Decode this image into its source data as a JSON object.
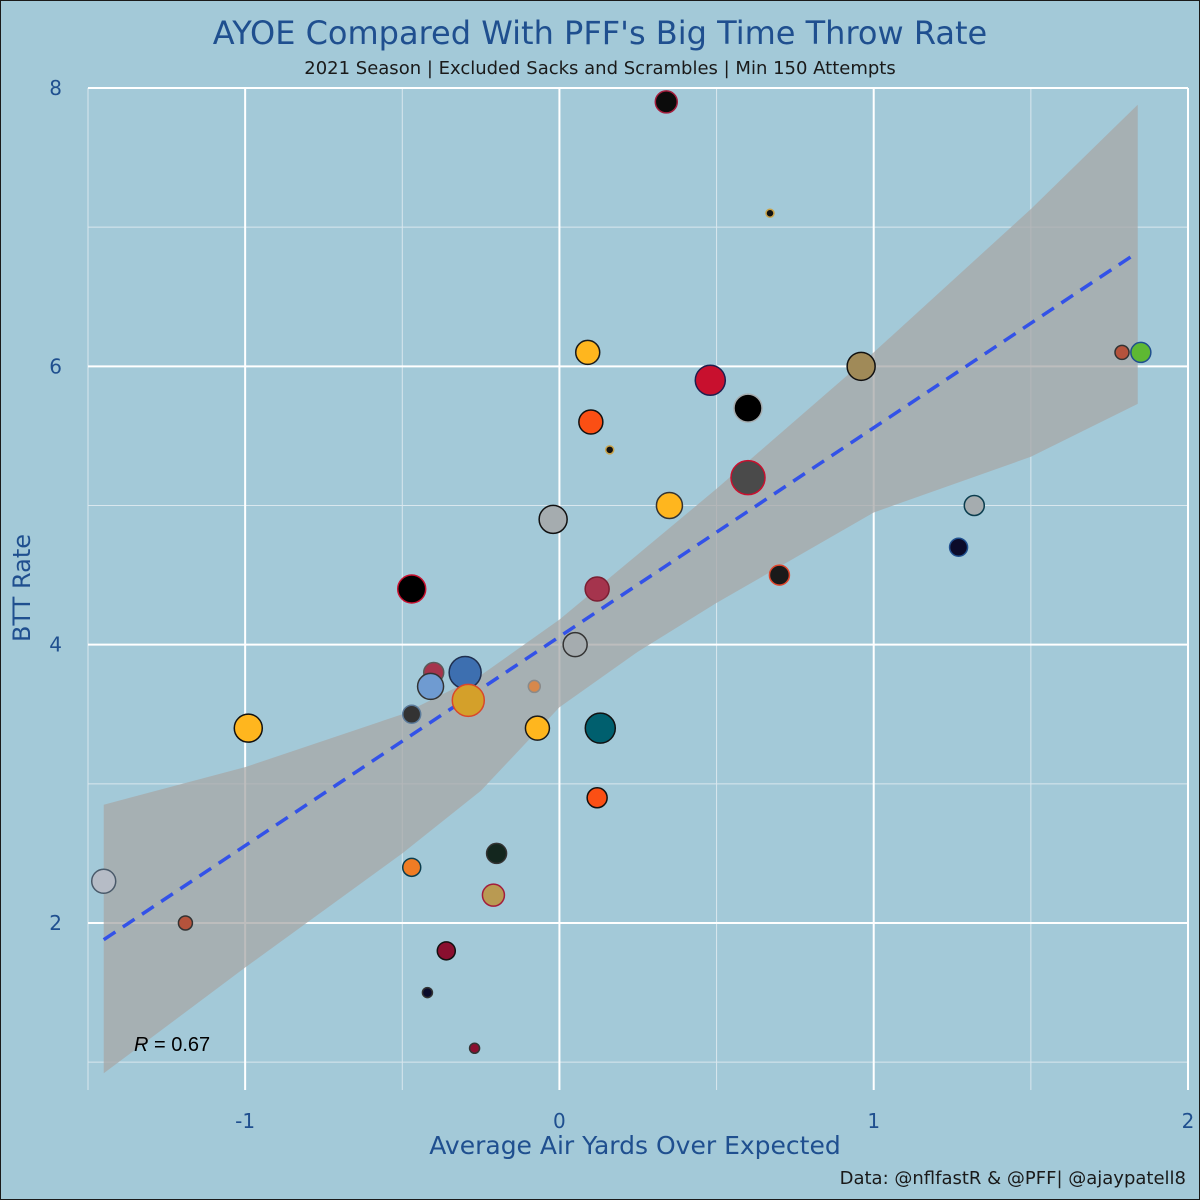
{
  "chart_data": {
    "type": "scatter",
    "title": "AYOE Compared With PFF's Big Time Throw Rate",
    "subtitle": "2021 Season | Excluded Sacks and Scrambles | Min 150 Attempts",
    "xlabel": "Average Air Yards Over Expected",
    "ylabel": "BTT Rate",
    "caption": "Data: @nflfastR & @PFF| @ajaypatell8",
    "xlim": [
      -1.5,
      2.0
    ],
    "ylim": [
      0.8,
      8.0
    ],
    "x_ticks": [
      -1,
      0,
      1,
      2
    ],
    "x_tick_labels": [
      "-1",
      "0",
      "1",
      "2"
    ],
    "y_ticks": [
      2,
      4,
      6,
      8
    ],
    "y_tick_labels": [
      "2",
      "4",
      "6",
      "8"
    ],
    "grid": true,
    "correlation_label": {
      "symbol": "R",
      "text": " = 0.67"
    },
    "trendline": {
      "style": "dashed",
      "color": "#3352e8",
      "x": [
        -1.45,
        1.84
      ],
      "y": [
        1.88,
        6.82
      ]
    },
    "confidence_band": {
      "color": "#a7a7a7",
      "x": [
        -1.45,
        -1.0,
        -0.5,
        -0.25,
        0.0,
        0.25,
        0.5,
        1.0,
        1.5,
        1.84
      ],
      "upper": [
        2.85,
        3.12,
        3.5,
        3.78,
        4.18,
        4.65,
        5.12,
        6.1,
        7.13,
        7.88
      ],
      "lower": [
        0.92,
        1.68,
        2.5,
        2.95,
        3.55,
        3.95,
        4.3,
        4.95,
        5.35,
        5.73
      ]
    },
    "points": [
      {
        "x": 0.34,
        "y": 7.9,
        "size": 11,
        "fill": "#0b0b0b",
        "stroke": "#a31d3c"
      },
      {
        "x": 0.67,
        "y": 7.1,
        "size": 4,
        "fill": "#111111",
        "stroke": "#c9a34a"
      },
      {
        "x": 0.09,
        "y": 6.1,
        "size": 12,
        "fill": "#ffb61e",
        "stroke": "#1a1a1a"
      },
      {
        "x": 0.48,
        "y": 5.9,
        "size": 15,
        "fill": "#c8102e",
        "stroke": "#1e1e4e"
      },
      {
        "x": 0.6,
        "y": 5.7,
        "size": 14,
        "fill": "#000000",
        "stroke": "#a5acaf"
      },
      {
        "x": 0.96,
        "y": 6.0,
        "size": 14,
        "fill": "#a08a58",
        "stroke": "#111111"
      },
      {
        "x": 1.79,
        "y": 6.1,
        "size": 7,
        "fill": "#b5533c",
        "stroke": "#333333"
      },
      {
        "x": 1.85,
        "y": 6.1,
        "size": 10,
        "fill": "#5eb833",
        "stroke": "#1f4f8f"
      },
      {
        "x": 0.1,
        "y": 5.6,
        "size": 12,
        "fill": "#fb4f14",
        "stroke": "#111111"
      },
      {
        "x": 0.16,
        "y": 5.4,
        "size": 4,
        "fill": "#111111",
        "stroke": "#c9a34a"
      },
      {
        "x": 0.6,
        "y": 5.2,
        "size": 17,
        "fill": "#4a4a4a",
        "stroke": "#c8102e"
      },
      {
        "x": 0.35,
        "y": 5.0,
        "size": 13,
        "fill": "#ffb61e",
        "stroke": "#333333"
      },
      {
        "x": -0.02,
        "y": 4.9,
        "size": 14,
        "fill": "#a5acaf",
        "stroke": "#111111"
      },
      {
        "x": 1.32,
        "y": 5.0,
        "size": 10,
        "fill": "#a5acaf",
        "stroke": "#0b3d4e"
      },
      {
        "x": 1.27,
        "y": 4.7,
        "size": 9,
        "fill": "#0b0b2a",
        "stroke": "#1f4f8f"
      },
      {
        "x": 0.7,
        "y": 4.5,
        "size": 10,
        "fill": "#1a1a1a",
        "stroke": "#e0452b"
      },
      {
        "x": -0.47,
        "y": 4.4,
        "size": 14,
        "fill": "#000000",
        "stroke": "#c8102e"
      },
      {
        "x": 0.12,
        "y": 4.4,
        "size": 12,
        "fill": "#a5344d",
        "stroke": "#7a1f33"
      },
      {
        "x": 0.05,
        "y": 4.0,
        "size": 12,
        "fill": "#a5acaf",
        "stroke": "#333333"
      },
      {
        "x": -0.4,
        "y": 3.8,
        "size": 10,
        "fill": "#a5344d",
        "stroke": "#5a5a5a"
      },
      {
        "x": -0.3,
        "y": 3.8,
        "size": 16,
        "fill": "#3d6fb0",
        "stroke": "#1f2f4f"
      },
      {
        "x": -0.41,
        "y": 3.7,
        "size": 13,
        "fill": "#6f9bd1",
        "stroke": "#333333"
      },
      {
        "x": -0.08,
        "y": 3.7,
        "size": 6,
        "fill": "#d7884b",
        "stroke": "#8a8a8a"
      },
      {
        "x": -0.29,
        "y": 3.6,
        "size": 16,
        "fill": "#d4a02a",
        "stroke": "#d9472b"
      },
      {
        "x": -0.47,
        "y": 3.5,
        "size": 9,
        "fill": "#333333",
        "stroke": "#5a7a9a"
      },
      {
        "x": -0.99,
        "y": 3.4,
        "size": 14,
        "fill": "#ffb61e",
        "stroke": "#111111"
      },
      {
        "x": -0.07,
        "y": 3.4,
        "size": 12,
        "fill": "#ffb61e",
        "stroke": "#1a1a1a"
      },
      {
        "x": 0.13,
        "y": 3.4,
        "size": 15,
        "fill": "#005f6e",
        "stroke": "#111111"
      },
      {
        "x": 0.12,
        "y": 2.9,
        "size": 10,
        "fill": "#fb4f14",
        "stroke": "#111111"
      },
      {
        "x": -0.2,
        "y": 2.5,
        "size": 10,
        "fill": "#13261e",
        "stroke": "#333333"
      },
      {
        "x": -0.47,
        "y": 2.4,
        "size": 9,
        "fill": "#f07c24",
        "stroke": "#0b3d4e"
      },
      {
        "x": -0.21,
        "y": 2.2,
        "size": 11,
        "fill": "#b99a52",
        "stroke": "#a31d3c"
      },
      {
        "x": -1.45,
        "y": 2.3,
        "size": 12,
        "fill": "#b6bcc6",
        "stroke": "#4a5a6a"
      },
      {
        "x": -1.19,
        "y": 2.0,
        "size": 7,
        "fill": "#b5533c",
        "stroke": "#333333"
      },
      {
        "x": -0.36,
        "y": 1.8,
        "size": 9,
        "fill": "#8a0f2f",
        "stroke": "#111111"
      },
      {
        "x": -0.42,
        "y": 1.5,
        "size": 5,
        "fill": "#0b0b2a",
        "stroke": "#333333"
      },
      {
        "x": -0.27,
        "y": 1.1,
        "size": 5,
        "fill": "#8a0f2f",
        "stroke": "#333333"
      }
    ]
  }
}
